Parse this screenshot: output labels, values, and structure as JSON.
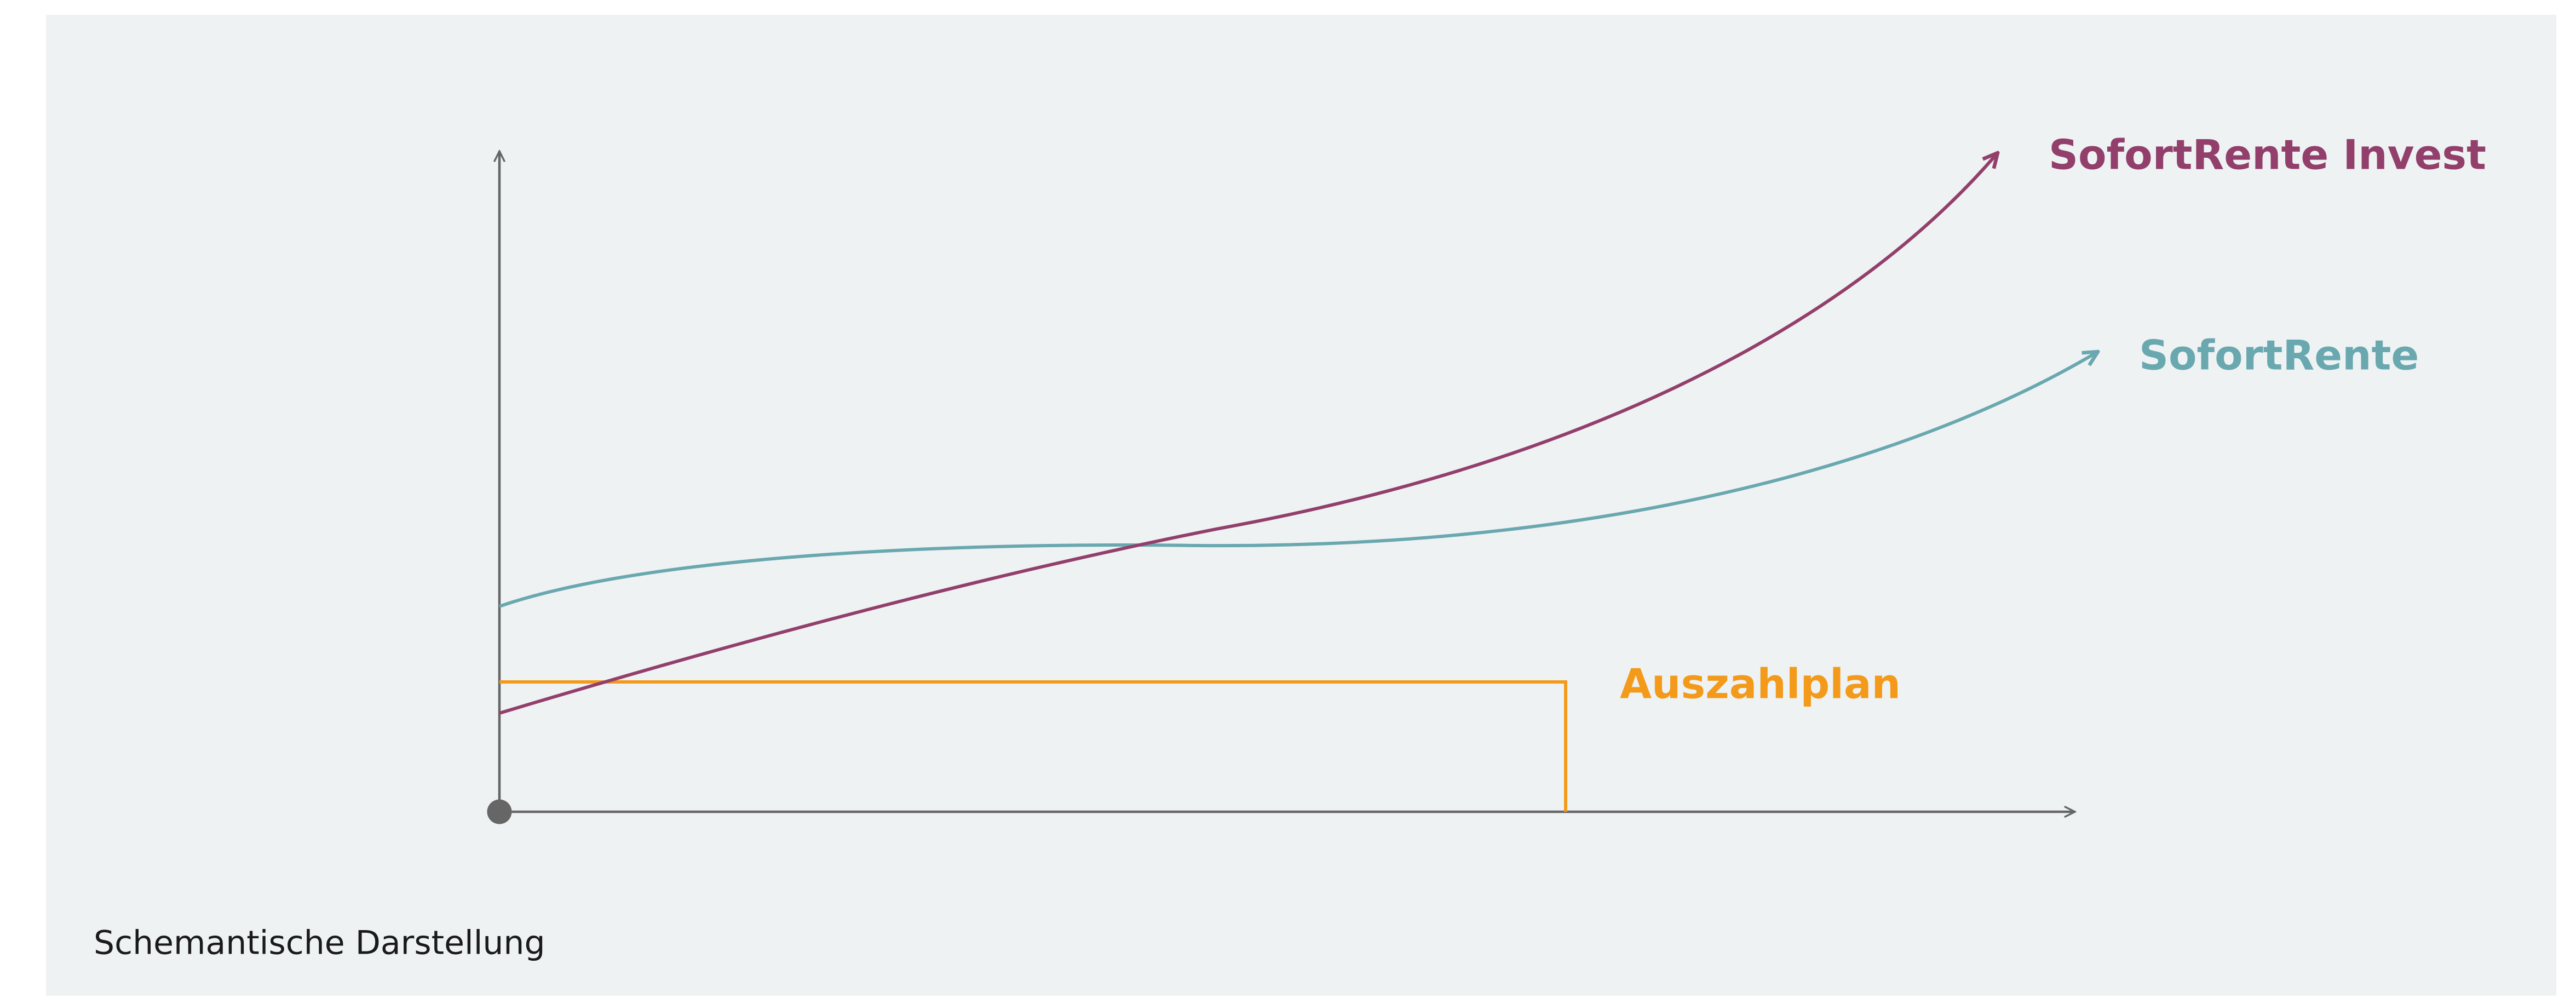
{
  "diagram": {
    "curves": [
      {
        "label": "SofortRente Invest"
      },
      {
        "label": "SofortRente"
      },
      {
        "label": "Auszahlplan"
      }
    ],
    "caption": "Schemantische Darstellung"
  }
}
